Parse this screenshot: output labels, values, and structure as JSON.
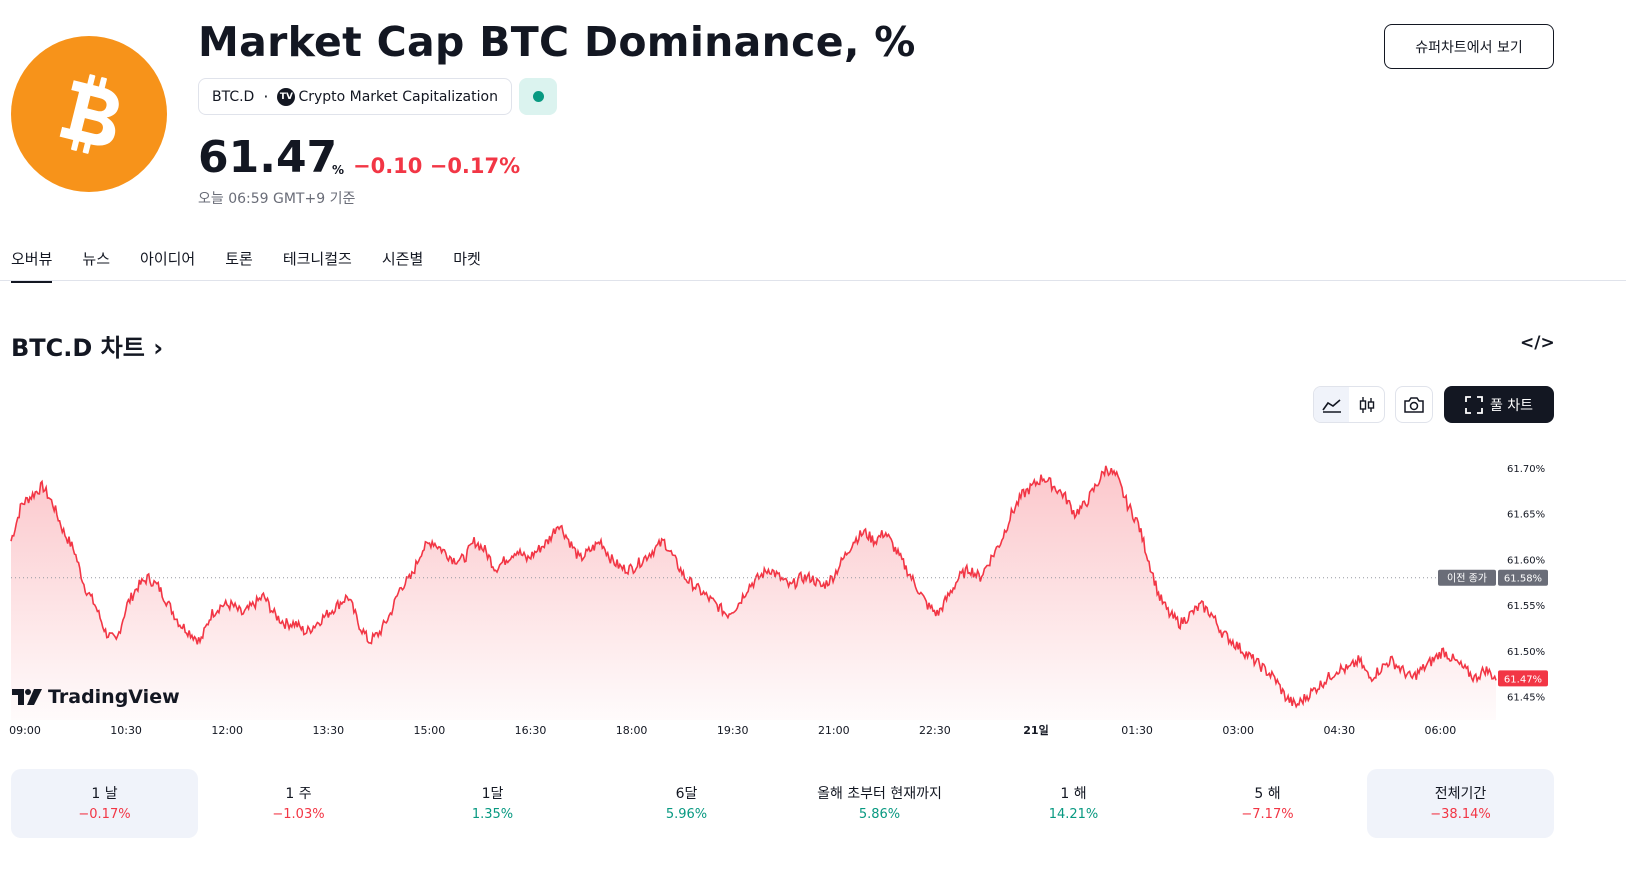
{
  "header": {
    "title": "Market Cap BTC Dominance, %",
    "symbol": "BTC.D",
    "exchange": "Crypto Market Capitalization",
    "price": "61.47",
    "unit": "%",
    "change": "−0.10 −0.17%",
    "time_note": "오늘 06:59 GMT+9 기준",
    "super_chart_button": "슈퍼차트에서 보기",
    "logo_icon": "bitcoin-logo",
    "status_color": "#089981"
  },
  "tabs": [
    "오버뷰",
    "뉴스",
    "아이디어",
    "토론",
    "테크니컬즈",
    "시즌별",
    "마켓"
  ],
  "chart_section": {
    "heading": "BTC.D 차트",
    "full_chart_label": "풀 차트",
    "watermark": "TradingView",
    "prev_close_label": "이전 종가"
  },
  "chart_data": {
    "type": "area",
    "x_ticks": [
      "09:00",
      "10:30",
      "12:00",
      "13:30",
      "15:00",
      "16:30",
      "18:00",
      "19:30",
      "21:00",
      "22:30",
      "21일",
      "01:30",
      "03:00",
      "04:30",
      "06:00"
    ],
    "y_ticks": [
      "61.70%",
      "61.65%",
      "61.60%",
      "61.55%",
      "61.50%",
      "61.45%"
    ],
    "ylim": [
      61.43,
      61.725
    ],
    "previous_close": 61.58,
    "previous_close_label": "61.58%",
    "last": 61.47,
    "last_label": "61.47%",
    "line_color": "#f23645",
    "series": [
      {
        "values": [
          61.62,
          61.66,
          61.67,
          61.68,
          61.66,
          61.63,
          61.61,
          61.57,
          61.55,
          61.52,
          61.51,
          61.55,
          61.57,
          61.58,
          61.57,
          61.55,
          61.53,
          61.52,
          61.51,
          61.54,
          61.55,
          61.55,
          61.54,
          61.55,
          61.56,
          61.54,
          61.53,
          61.53,
          61.52,
          61.53,
          61.54,
          61.55,
          61.56,
          61.53,
          61.51,
          61.52,
          61.54,
          61.57,
          61.58,
          61.61,
          61.62,
          61.61,
          61.6,
          61.6,
          61.62,
          61.61,
          61.59,
          61.6,
          61.61,
          61.6,
          61.61,
          61.62,
          61.64,
          61.62,
          61.6,
          61.61,
          61.62,
          61.6,
          61.59,
          61.59,
          61.6,
          61.61,
          61.62,
          61.6,
          61.58,
          61.57,
          61.56,
          61.55,
          61.54,
          61.55,
          61.57,
          61.58,
          61.59,
          61.58,
          61.57,
          61.58,
          61.58,
          61.57,
          61.58,
          61.6,
          61.62,
          61.63,
          61.62,
          61.63,
          61.61,
          61.59,
          61.57,
          61.55,
          61.54,
          61.56,
          61.58,
          61.59,
          61.58,
          61.6,
          61.62,
          61.65,
          61.67,
          61.68,
          61.69,
          61.68,
          61.67,
          61.65,
          61.66,
          61.68,
          61.7,
          61.69,
          61.66,
          61.64,
          61.6,
          61.56,
          61.54,
          61.53,
          61.54,
          61.55,
          61.54,
          61.52,
          61.51,
          61.5,
          61.49,
          61.48,
          61.47,
          61.45,
          61.44,
          61.45,
          61.46,
          61.47,
          61.48,
          61.48,
          61.49,
          61.47,
          61.48,
          61.49,
          61.48,
          61.47,
          61.48,
          61.49,
          61.5,
          61.49,
          61.48,
          61.47,
          61.48,
          61.47
        ]
      }
    ]
  },
  "periods": [
    {
      "label": "1 날",
      "value": "−0.17%",
      "color": "#f23645"
    },
    {
      "label": "1 주",
      "value": "−1.03%",
      "color": "#f23645"
    },
    {
      "label": "1달",
      "value": "1.35%",
      "color": "#089981"
    },
    {
      "label": "6달",
      "value": "5.96%",
      "color": "#089981"
    },
    {
      "label": "올해 초부터 현재까지",
      "value": "5.86%",
      "color": "#089981"
    },
    {
      "label": "1 해",
      "value": "14.21%",
      "color": "#089981"
    },
    {
      "label": "5 해",
      "value": "−7.17%",
      "color": "#f23645"
    },
    {
      "label": "전체기간",
      "value": "−38.14%",
      "color": "#f23645"
    }
  ]
}
